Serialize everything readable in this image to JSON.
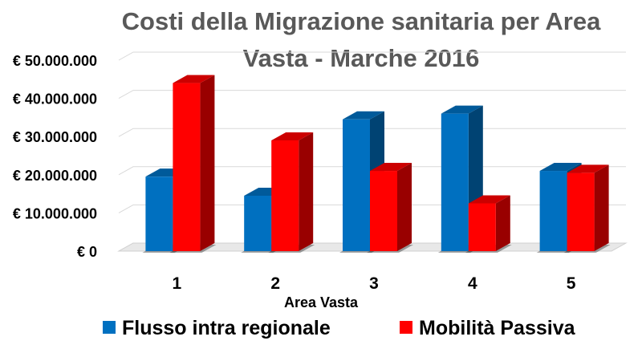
{
  "chart_data": {
    "type": "bar",
    "title": "Costi della Migrazione sanitaria per Area Vasta - Marche 2016",
    "title_lines": [
      "Costi della Migrazione sanitaria per Area",
      "Vasta - Marche 2016"
    ],
    "xlabel": "Area Vasta",
    "ylabel": "",
    "categories": [
      "1",
      "2",
      "3",
      "4",
      "5"
    ],
    "y_ticks": [
      0,
      10000000,
      20000000,
      30000000,
      40000000,
      50000000
    ],
    "y_tick_labels": [
      "€ 0",
      "€ 10.000.000",
      "€ 20.000.000",
      "€ 30.000.000",
      "€ 40.000.000",
      "€ 50.000.000"
    ],
    "ylim": [
      0,
      50000000
    ],
    "grid": true,
    "legend_position": "bottom",
    "three_d": true,
    "series": [
      {
        "name": "Flusso intra regionale",
        "color": "#0070C0",
        "values": [
          19500000,
          14500000,
          34500000,
          36000000,
          21000000
        ]
      },
      {
        "name": "Mobilità Passiva",
        "color": "#FF0000",
        "values": [
          44000000,
          29000000,
          21000000,
          12500000,
          20500000
        ]
      }
    ]
  }
}
